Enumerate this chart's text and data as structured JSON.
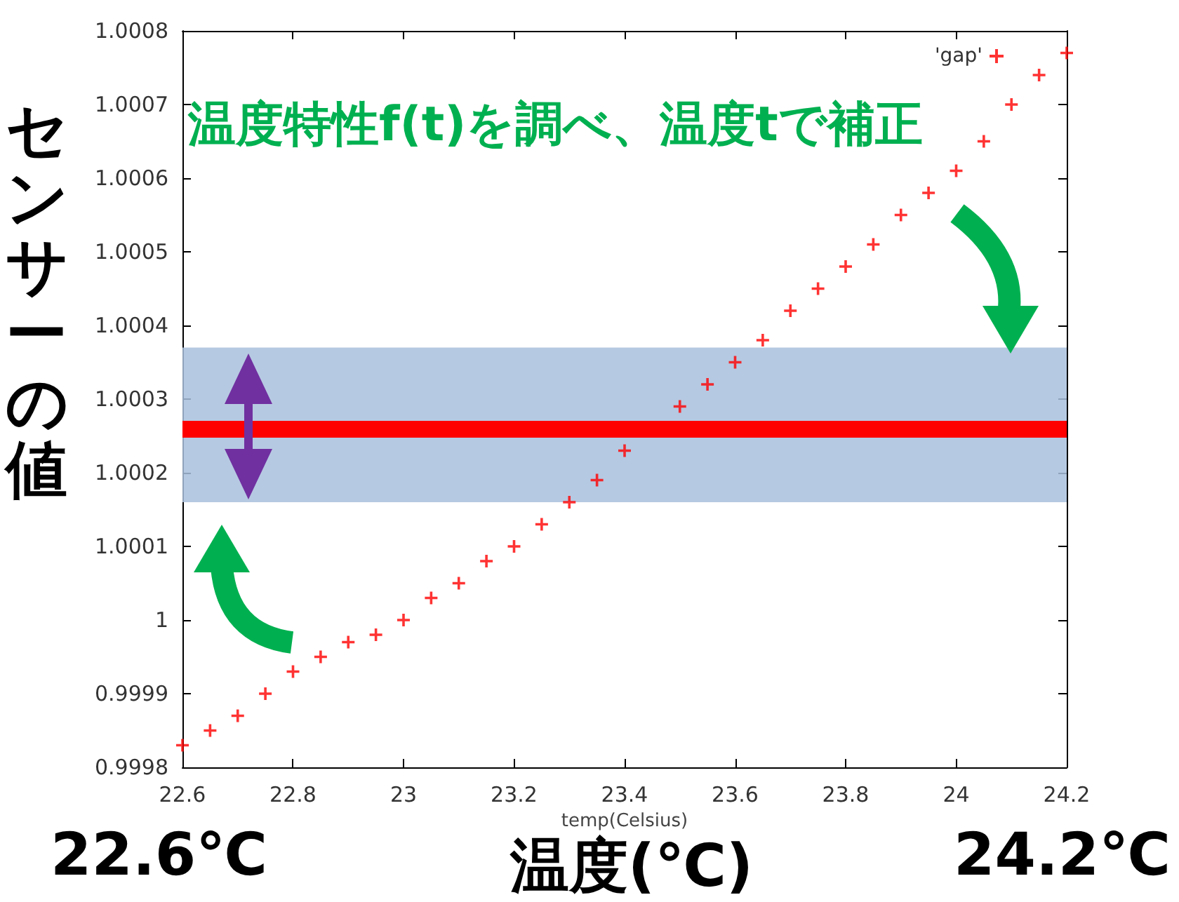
{
  "chart_data": {
    "type": "scatter",
    "title": "温度特性f(t)を調べ、温度tで補正",
    "xlabel": "temp(Celsius)",
    "ylabel": "センサーの値",
    "annotations": [
      "22.6℃",
      "温度(℃)",
      "24.2℃"
    ],
    "x": [
      22.6,
      22.65,
      22.7,
      22.75,
      22.8,
      22.85,
      22.9,
      22.95,
      23.0,
      23.05,
      23.1,
      23.15,
      23.2,
      23.25,
      23.3,
      23.35,
      23.4,
      23.45,
      23.5,
      23.55,
      23.6,
      23.65,
      23.7,
      23.75,
      23.8,
      23.85,
      23.9,
      23.95,
      24.0,
      24.05,
      24.1,
      24.15,
      24.2
    ],
    "series": [
      {
        "name": "'gap'",
        "color": "#ff0000",
        "values": [
          0.99983,
          0.99985,
          0.99987,
          0.9999,
          0.99993,
          0.99995,
          0.99997,
          0.99998,
          1.0,
          1.00003,
          1.00005,
          1.00008,
          1.0001,
          1.00013,
          1.00016,
          1.00019,
          1.00023,
          null,
          1.00029,
          1.00032,
          1.00035,
          1.00038,
          1.00042,
          1.00045,
          1.00048,
          1.00051,
          1.00055,
          1.00058,
          1.00061,
          1.00065,
          1.0007,
          1.00074,
          1.00077
        ]
      }
    ],
    "xlim": [
      22.6,
      24.2
    ],
    "xticks": [
      22.6,
      22.8,
      23,
      23.2,
      23.4,
      23.6,
      23.8,
      24,
      24.2
    ],
    "ylim": [
      0.9998,
      1.0008
    ],
    "yticks": [
      0.9998,
      0.9999,
      1,
      1.0001,
      1.0002,
      1.0003,
      1.0004,
      1.0005,
      1.0006,
      1.0007,
      1.0008
    ],
    "bands": [
      {
        "axis": "y",
        "from": 1.00016,
        "to": 1.00037,
        "color": "#a9bfdd"
      }
    ],
    "ref_lines": [
      {
        "axis": "y",
        "value": 1.00026,
        "color": "#ff0000",
        "line_style": "solid"
      }
    ],
    "grid": false,
    "legend": "top right",
    "marker": "cross"
  }
}
